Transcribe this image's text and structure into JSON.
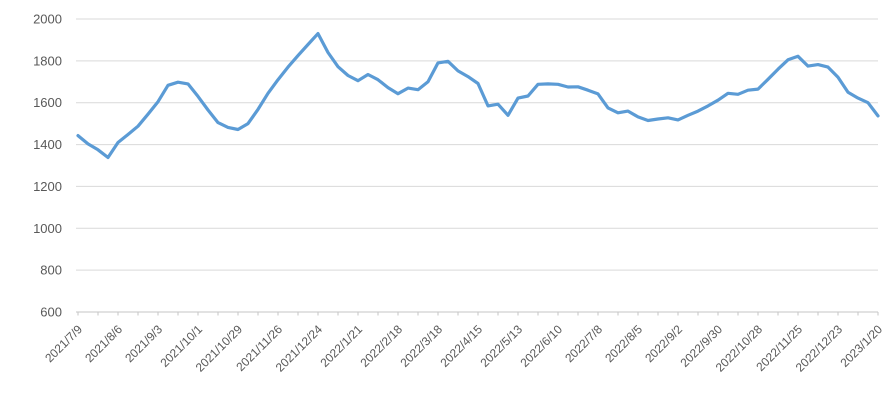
{
  "chart_data": {
    "type": "line",
    "title": "",
    "legend": "none",
    "grid": true,
    "series_name": "price-series",
    "x_tick_labels": [
      "2021/7/9",
      "2021/8/6",
      "2021/9/3",
      "2021/10/1",
      "2021/10/29",
      "2021/11/26",
      "2021/12/24",
      "2022/1/21",
      "2022/2/18",
      "2022/3/18",
      "2022/4/15",
      "2022/5/13",
      "2022/6/10",
      "2022/7/8",
      "2022/8/5",
      "2022/9/2",
      "2022/9/30",
      "2022/10/28",
      "2022/11/25",
      "2022/12/23",
      "2023/1/20"
    ],
    "label_every_n_points": 4,
    "x_interval": "weekly",
    "values": [
      1443,
      1403,
      1375,
      1338,
      1410,
      1448,
      1488,
      1545,
      1605,
      1683,
      1698,
      1690,
      1630,
      1565,
      1505,
      1482,
      1472,
      1500,
      1568,
      1645,
      1710,
      1770,
      1825,
      1878,
      1930,
      1840,
      1772,
      1730,
      1705,
      1735,
      1710,
      1672,
      1643,
      1670,
      1662,
      1700,
      1790,
      1798,
      1752,
      1725,
      1692,
      1585,
      1593,
      1540,
      1622,
      1632,
      1688,
      1690,
      1688,
      1675,
      1676,
      1660,
      1642,
      1575,
      1552,
      1560,
      1532,
      1515,
      1522,
      1528,
      1518,
      1540,
      1560,
      1585,
      1612,
      1645,
      1640,
      1660,
      1665,
      1712,
      1760,
      1805,
      1822,
      1775,
      1782,
      1770,
      1722,
      1650,
      1622,
      1600,
      1537
    ],
    "y_ticks": [
      600,
      800,
      1000,
      1200,
      1400,
      1600,
      1800,
      2000
    ],
    "ylim": [
      600,
      2000
    ],
    "colors": {
      "line": "#5B9BD5",
      "grid": "#D9D9D9",
      "axis": "#C6C6C6",
      "tick": "#C6C6C6",
      "label": "#595959",
      "background": "#FFFFFF"
    }
  }
}
